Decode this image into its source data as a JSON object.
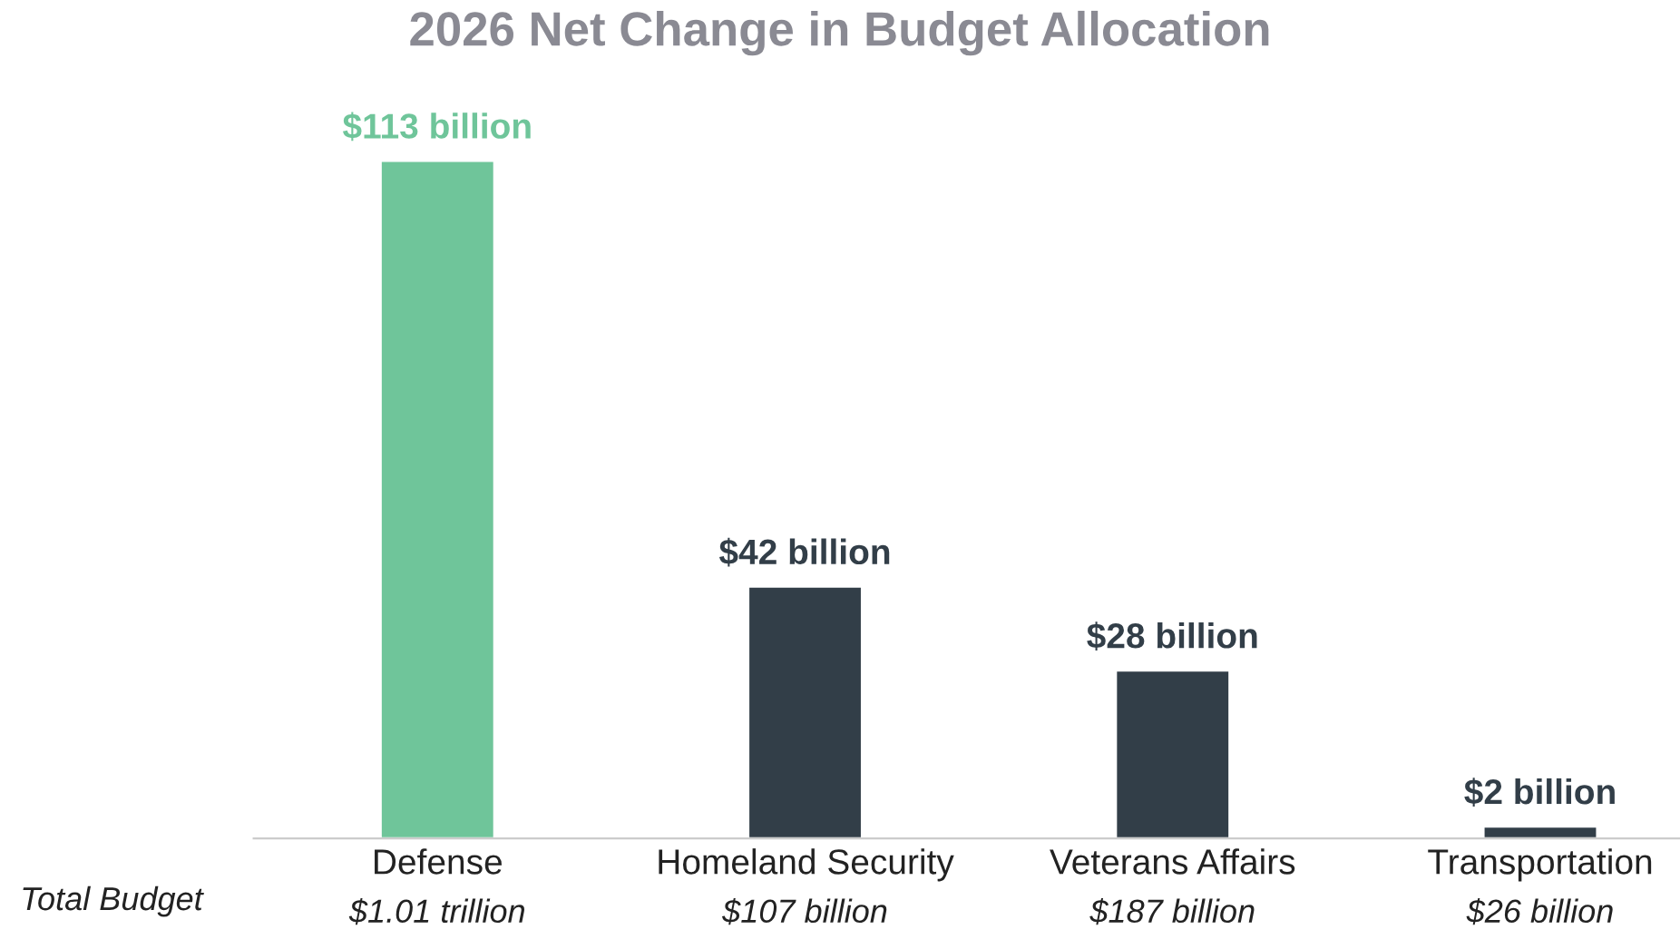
{
  "chart_data": {
    "type": "bar",
    "title": "2026 Net Change in Budget Allocation",
    "categories": [
      "Defense",
      "Homeland Security",
      "Veterans Affairs",
      "Transportation"
    ],
    "values": [
      113,
      42,
      28,
      2
    ],
    "colors": [
      "#6fc59a",
      "#323e48",
      "#323e48",
      "#323e48"
    ],
    "value_labels": [
      "$113 billion",
      "$42 billion",
      "$28 billion",
      "$2 billion"
    ],
    "annotations": [
      "Total Budget",
      "$1.01 trillion",
      "$107 billion",
      "$187 billion",
      "$26 billion"
    ],
    "grid": false,
    "legend": false
  }
}
